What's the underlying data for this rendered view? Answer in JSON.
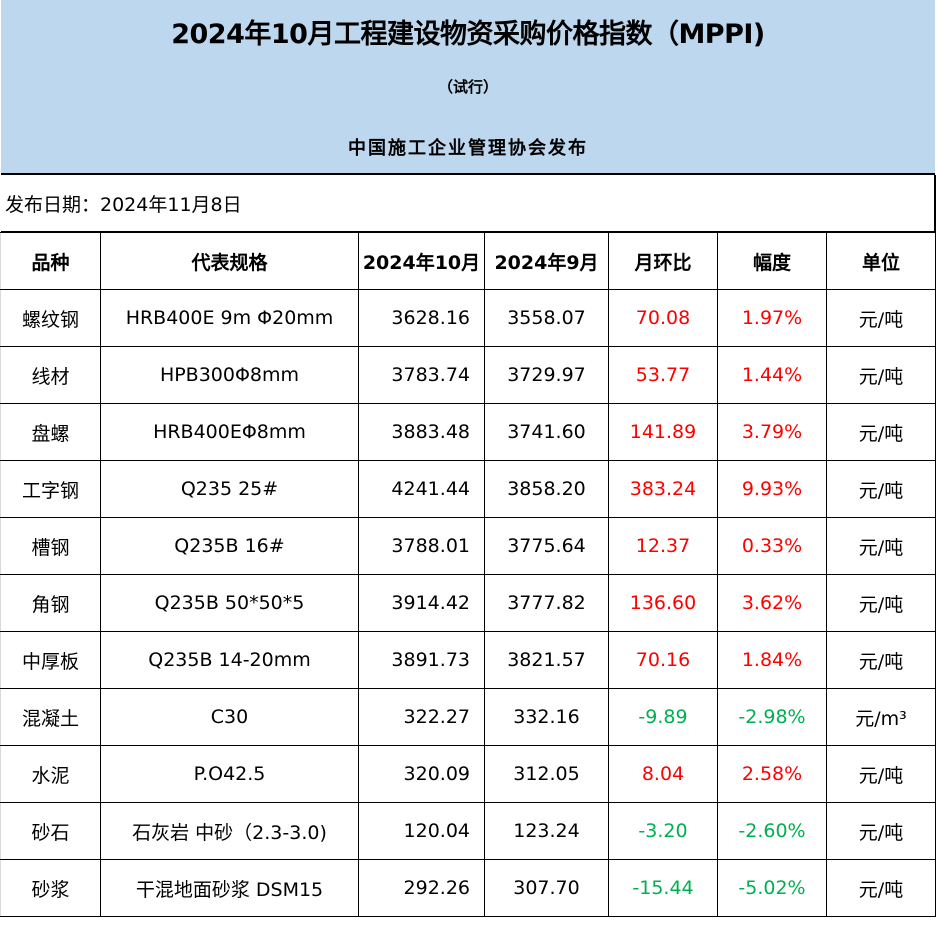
{
  "header": {
    "title": "2024年10月工程建设物资采购价格指数（MPPI)",
    "subtitle": "（试行）",
    "publisher": "中国施工企业管理协会发布",
    "background_color": "#bdd7ee"
  },
  "publish_date": "发布日期：2024年11月8日",
  "table": {
    "columns": [
      "品种",
      "代表规格",
      "2024年10月",
      "2024年9月",
      "月环比",
      "幅度",
      "单位"
    ],
    "colors": {
      "increase": "#ff0000",
      "decrease": "#00b050"
    },
    "rows": [
      {
        "variety": "螺纹钢",
        "spec": "HRB400E 9m Φ20mm",
        "oct": "3628.16",
        "sep": "3558.07",
        "mom": "70.08",
        "pct": "1.97%",
        "unit": "元/吨",
        "trend": "up"
      },
      {
        "variety": "线材",
        "spec": "HPB300Φ8mm",
        "oct": "3783.74",
        "sep": "3729.97",
        "mom": "53.77",
        "pct": "1.44%",
        "unit": "元/吨",
        "trend": "up"
      },
      {
        "variety": "盘螺",
        "spec": "HRB400EΦ8mm",
        "oct": "3883.48",
        "sep": "3741.60",
        "mom": "141.89",
        "pct": "3.79%",
        "unit": "元/吨",
        "trend": "up"
      },
      {
        "variety": "工字钢",
        "spec": "Q235 25#",
        "oct": "4241.44",
        "sep": "3858.20",
        "mom": "383.24",
        "pct": "9.93%",
        "unit": "元/吨",
        "trend": "up"
      },
      {
        "variety": "槽钢",
        "spec": "Q235B 16#",
        "oct": "3788.01",
        "sep": "3775.64",
        "mom": "12.37",
        "pct": "0.33%",
        "unit": "元/吨",
        "trend": "up"
      },
      {
        "variety": "角钢",
        "spec": "Q235B 50*50*5",
        "oct": "3914.42",
        "sep": "3777.82",
        "mom": "136.60",
        "pct": "3.62%",
        "unit": "元/吨",
        "trend": "up"
      },
      {
        "variety": "中厚板",
        "spec": "Q235B 14-20mm",
        "oct": "3891.73",
        "sep": "3821.57",
        "mom": "70.16",
        "pct": "1.84%",
        "unit": "元/吨",
        "trend": "up"
      },
      {
        "variety": "混凝土",
        "spec": "C30",
        "oct": "322.27",
        "sep": "332.16",
        "mom": "-9.89",
        "pct": "-2.98%",
        "unit": "元/m³",
        "trend": "down"
      },
      {
        "variety": "水泥",
        "spec": "P.O42.5",
        "oct": "320.09",
        "sep": "312.05",
        "mom": "8.04",
        "pct": "2.58%",
        "unit": "元/吨",
        "trend": "up"
      },
      {
        "variety": "砂石",
        "spec": "石灰岩 中砂（2.3-3.0)",
        "oct": "120.04",
        "sep": "123.24",
        "mom": "-3.20",
        "pct": "-2.60%",
        "unit": "元/吨",
        "trend": "down"
      },
      {
        "variety": "砂浆",
        "spec": "干混地面砂浆 DSM15",
        "oct": "292.26",
        "sep": "307.70",
        "mom": "-15.44",
        "pct": "-5.02%",
        "unit": "元/吨",
        "trend": "down"
      }
    ]
  }
}
